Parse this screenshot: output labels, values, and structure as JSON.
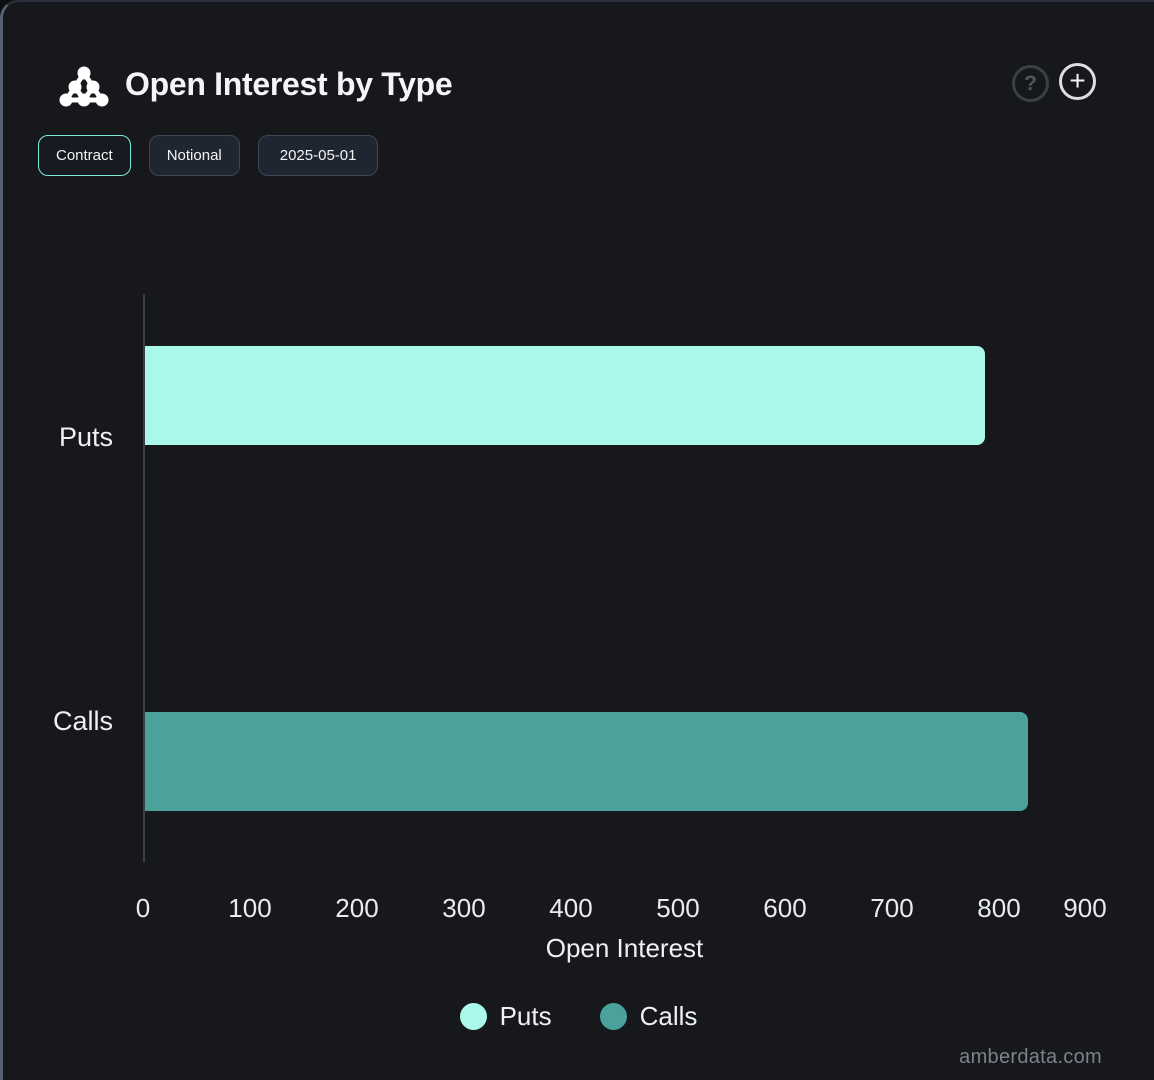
{
  "header": {
    "title": "Open Interest by Type",
    "help_label": "?",
    "add_label": "+"
  },
  "toolbar": {
    "buttons": [
      {
        "label": "Contract",
        "selected": true
      },
      {
        "label": "Notional",
        "selected": false
      },
      {
        "label": "2025-05-01",
        "selected": false
      }
    ]
  },
  "chart_data": {
    "type": "bar",
    "orientation": "horizontal",
    "title": "Open Interest by Type",
    "categories": [
      "Puts",
      "Calls"
    ],
    "values": [
      785,
      825
    ],
    "series_colors": {
      "Puts": "#a9f8ea",
      "Calls": "#4aa29a"
    },
    "xlabel": "Open Interest",
    "ylabel": "",
    "xlim": [
      0,
      900
    ],
    "x_ticks": [
      0,
      100,
      200,
      300,
      400,
      500,
      600,
      700,
      800,
      900
    ],
    "grid": false,
    "legend": [
      "Puts",
      "Calls"
    ],
    "legend_position": "bottom"
  },
  "watermark": "amberdata.com",
  "colors": {
    "background": "#16181c",
    "puts_bar": "#a9f8ea",
    "calls_bar": "#4aa29a",
    "selected_button_border": "#7debdb",
    "axis_line": "#3b3e43"
  }
}
